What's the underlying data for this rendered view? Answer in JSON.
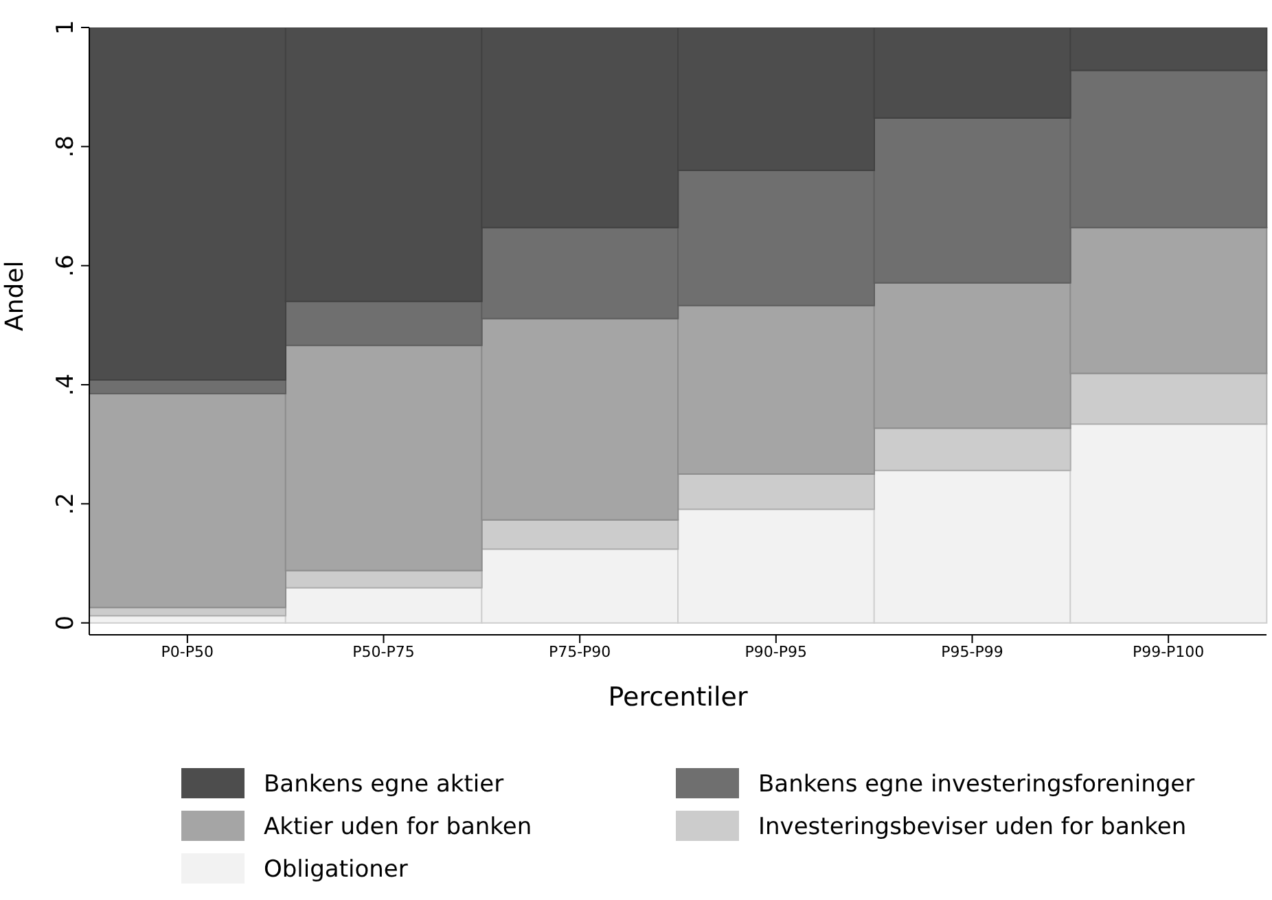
{
  "chart_data": {
    "type": "bar",
    "stacked": true,
    "xlabel": "Percentiler",
    "ylabel": "Andel",
    "categories": [
      "P0-P50",
      "P50-P75",
      "P75-P90",
      "P90-P95",
      "P95-P99",
      "P99-P100"
    ],
    "series": [
      {
        "name": "Obligationer",
        "color": "#f2f2f2",
        "values": [
          0.012,
          0.059,
          0.124,
          0.191,
          0.256,
          0.334
        ]
      },
      {
        "name": "Investeringsbeviser uden for banken",
        "color": "#cccccc",
        "values": [
          0.014,
          0.029,
          0.049,
          0.059,
          0.071,
          0.085
        ]
      },
      {
        "name": "Aktier uden for banken",
        "color": "#a5a5a5",
        "values": [
          0.359,
          0.378,
          0.338,
          0.283,
          0.244,
          0.245
        ]
      },
      {
        "name": "Bankens egne investeringsforeninger",
        "color": "#6f6f6f",
        "values": [
          0.023,
          0.074,
          0.153,
          0.227,
          0.277,
          0.264
        ]
      },
      {
        "name": "Bankens egne aktier",
        "color": "#4d4d4d",
        "values": [
          0.592,
          0.46,
          0.336,
          0.24,
          0.152,
          0.072
        ]
      }
    ],
    "ylim": [
      -0.02,
      1
    ],
    "yticks": [
      {
        "value": 0,
        "label": "0"
      },
      {
        "value": 0.2,
        "label": ".2"
      },
      {
        "value": 0.4,
        "label": ".4"
      },
      {
        "value": 0.6,
        "label": ".6"
      },
      {
        "value": 0.8,
        "label": ".8"
      },
      {
        "value": 1,
        "label": "1"
      }
    ],
    "grid": false,
    "legend": "bottom"
  }
}
